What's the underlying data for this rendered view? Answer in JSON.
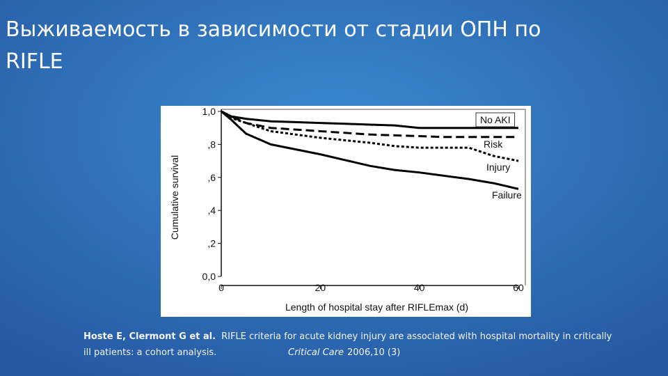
{
  "slide": {
    "title_lines": [
      "Выживаемость в зависимости от стадии  ОПН по",
      "RIFLE"
    ],
    "citation": {
      "authors": "Hoste E, Clermont G et al.",
      "text_line1": "RIFLE criteria for acute kidney injury are associated with hospital mortality in critically",
      "text_line2": "ill patients: a cohort analysis.",
      "journal": "Critical Care",
      "year": "2006,10 (3)"
    }
  },
  "chart_data": {
    "type": "line",
    "x_label": "Length of hospital stay after RIFLEmax (d)",
    "y_label": "Cumulative survival",
    "x": [
      0,
      2,
      5,
      10,
      15,
      20,
      25,
      30,
      35,
      40,
      45,
      50,
      55,
      60
    ],
    "series": [
      {
        "name": "No AKI",
        "color": "#000000",
        "dash": "solid",
        "values": [
          1.0,
          0.97,
          0.955,
          0.94,
          0.935,
          0.93,
          0.925,
          0.92,
          0.915,
          0.9,
          0.9,
          0.9,
          0.9,
          0.9
        ]
      },
      {
        "name": "Risk",
        "color": "#000000",
        "dash": "dashed",
        "values": [
          1.0,
          0.97,
          0.93,
          0.9,
          0.89,
          0.88,
          0.87,
          0.86,
          0.855,
          0.85,
          0.845,
          0.845,
          0.845,
          0.845
        ]
      },
      {
        "name": "Injury",
        "color": "#000000",
        "dash": "dotted",
        "values": [
          1.0,
          0.96,
          0.93,
          0.88,
          0.86,
          0.84,
          0.825,
          0.81,
          0.79,
          0.78,
          0.78,
          0.78,
          0.73,
          0.7
        ]
      },
      {
        "name": "Failure",
        "color": "#000000",
        "dash": "solid",
        "values": [
          1.0,
          0.95,
          0.865,
          0.8,
          0.77,
          0.74,
          0.705,
          0.67,
          0.645,
          0.63,
          0.61,
          0.59,
          0.565,
          0.53
        ]
      }
    ],
    "xlim": [
      0,
      60
    ],
    "xticks": [
      0,
      20,
      40,
      60
    ],
    "ylim": [
      0,
      1
    ],
    "yticks": [
      {
        "value": 0,
        "label": "0,0"
      },
      {
        "value": 0.2,
        "label": ",2"
      },
      {
        "value": 0.4,
        "label": ",4"
      },
      {
        "value": 0.6,
        "label": ",6"
      },
      {
        "value": 0.8,
        "label": ",8"
      },
      {
        "value": 1,
        "label": "1,0"
      }
    ]
  }
}
